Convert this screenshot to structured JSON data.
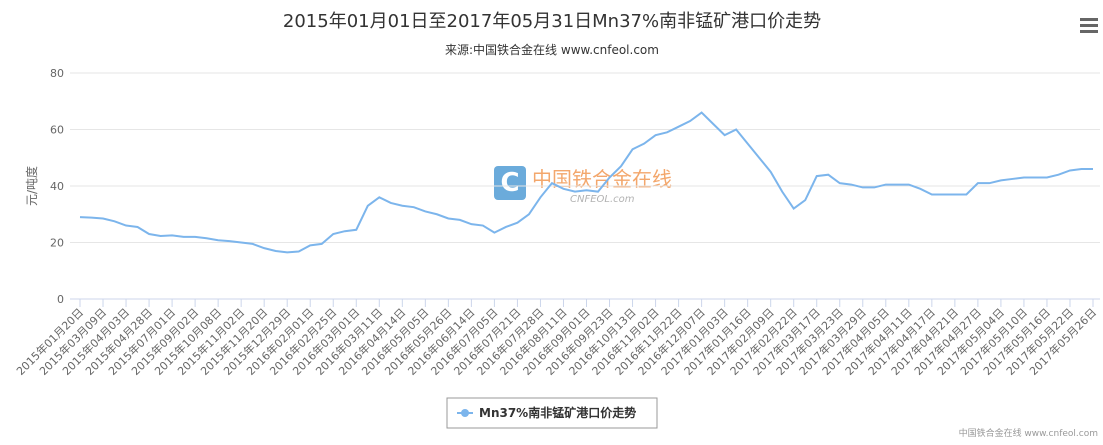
{
  "chart_data": {
    "type": "line",
    "title": "2015年01月01日至2017年05月31日Mn37%南非锰矿港口价走势",
    "subtitle": "来源:中国铁合金在线 www.cnfeol.com",
    "y_label": "元/吨度",
    "watermark": {
      "cn": "中国铁合金在线",
      "en": "CNFEOL.com"
    },
    "credits": "中国铁合金在线 www.cnfeol.com",
    "categories": [
      "2015年01月20日",
      null,
      "2015年03月09日",
      null,
      "2015年04月03日",
      null,
      "2015年04月28日",
      null,
      "2015年07月01日",
      null,
      "2015年09月02日",
      null,
      "2015年10月08日",
      null,
      "2015年11月02日",
      null,
      "2015年11月20日",
      null,
      "2015年12月29日",
      null,
      "2016年02月01日",
      null,
      "2016年02月25日",
      null,
      "2016年03月01日",
      null,
      "2016年03月11日",
      null,
      "2016年04月14日",
      null,
      "2016年05月05日",
      null,
      "2016年05月26日",
      null,
      "2016年06月14日",
      null,
      "2016年07月05日",
      null,
      "2016年07月21日",
      null,
      "2016年07月28日",
      null,
      "2016年08月11日",
      null,
      "2016年09月01日",
      null,
      "2016年09月23日",
      null,
      "2016年10月13日",
      null,
      "2016年11月02日",
      null,
      "2016年11月22日",
      null,
      "2016年12月07日",
      null,
      "2017年01月03日",
      null,
      "2017年01月16日",
      null,
      "2017年02月09日",
      null,
      "2017年02月22日",
      null,
      "2017年03月17日",
      null,
      "2017年03月23日",
      null,
      "2017年03月29日",
      null,
      "2017年04月05日",
      null,
      "2017年04月11日",
      null,
      "2017年04月17日",
      null,
      "2017年04月21日",
      null,
      "2017年04月27日",
      null,
      "2017年05月04日",
      null,
      "2017年05月10日",
      null,
      "2017年05月16日",
      null,
      "2017年05月22日",
      null,
      "2017年05月26日"
    ],
    "series": [
      {
        "name": "Mn37%南非锰矿港口价走势",
        "color": "#7cb5ec",
        "values": [
          29,
          28.8,
          28.5,
          27.5,
          26,
          25.5,
          23,
          22.3,
          22.5,
          22,
          22,
          21.5,
          20.8,
          20.5,
          20,
          19.5,
          18,
          17,
          16.5,
          16.8,
          19,
          19.5,
          23,
          24,
          24.5,
          33,
          36,
          34,
          33,
          32.5,
          31,
          30,
          28.5,
          28,
          26.5,
          26,
          23.5,
          25.5,
          27,
          30,
          36,
          41,
          39,
          38,
          38.5,
          38,
          43,
          47,
          53,
          55,
          58,
          59,
          61,
          63,
          66,
          62,
          58,
          60,
          55,
          50,
          45,
          38,
          32,
          35,
          43.5,
          44,
          41,
          40.5,
          39.5,
          39.5,
          40.5,
          40.5,
          40.5,
          39,
          37,
          37,
          37,
          37,
          41,
          41,
          42,
          42.5,
          43,
          43,
          43,
          44,
          45.5,
          46,
          46
        ]
      }
    ],
    "ylim": [
      0,
      80
    ],
    "yticks": [
      0,
      20,
      40,
      60,
      80
    ],
    "grid": true,
    "legend": "bottom"
  }
}
